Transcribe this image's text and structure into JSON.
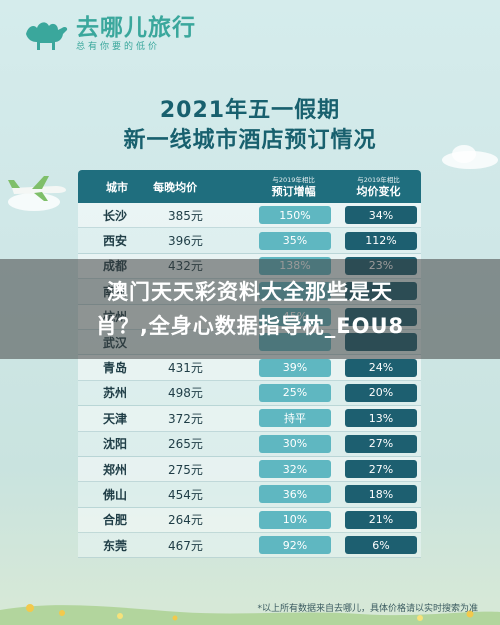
{
  "brand": {
    "name": "去哪儿旅行",
    "slogan": "总有你要的低价"
  },
  "title": {
    "line1": "2021年五一假期",
    "line2": "新一线城市酒店预订情况"
  },
  "table": {
    "headers": {
      "city": "城市",
      "avg_price": "每晚均价",
      "booking_note": "与2019年相比",
      "booking": "预订增幅",
      "avg_note": "与2019年相比",
      "avg_change": "均价变化"
    },
    "rows": [
      {
        "city": "长沙",
        "price": "385元",
        "booking": "150%",
        "avg": "34%"
      },
      {
        "city": "西安",
        "price": "396元",
        "booking": "35%",
        "avg": "112%"
      },
      {
        "city": "成都",
        "price": "432元",
        "booking": "138%",
        "avg": "23%"
      },
      {
        "city": "南京",
        "price": "",
        "booking": "",
        "avg": ""
      },
      {
        "city": "杭州",
        "price": "",
        "booking": "45%",
        "avg": ""
      },
      {
        "city": "武汉",
        "price": "",
        "booking": "",
        "avg": ""
      },
      {
        "city": "青岛",
        "price": "431元",
        "booking": "39%",
        "avg": "24%"
      },
      {
        "city": "苏州",
        "price": "498元",
        "booking": "25%",
        "avg": "20%"
      },
      {
        "city": "天津",
        "price": "372元",
        "booking": "持平",
        "avg": "13%"
      },
      {
        "city": "沈阳",
        "price": "265元",
        "booking": "30%",
        "avg": "27%"
      },
      {
        "city": "郑州",
        "price": "275元",
        "booking": "32%",
        "avg": "27%"
      },
      {
        "city": "佛山",
        "price": "454元",
        "booking": "36%",
        "avg": "18%"
      },
      {
        "city": "合肥",
        "price": "264元",
        "booking": "10%",
        "avg": "21%"
      },
      {
        "city": "东莞",
        "price": "467元",
        "booking": "92%",
        "avg": "6%"
      }
    ]
  },
  "banner": {
    "line1": "澳门天天彩资料大全那些是天",
    "line2": "肖？,全身心数据指导枕_EOU8"
  },
  "footnote": "*以上所有数据来自去哪儿，具体价格请以实时搜索为准",
  "colors": {
    "header": "#1f6e7e",
    "booking_pill": "#5fb7c1",
    "avg_pill": "#1d5f70",
    "brand": "#3aa79c"
  }
}
